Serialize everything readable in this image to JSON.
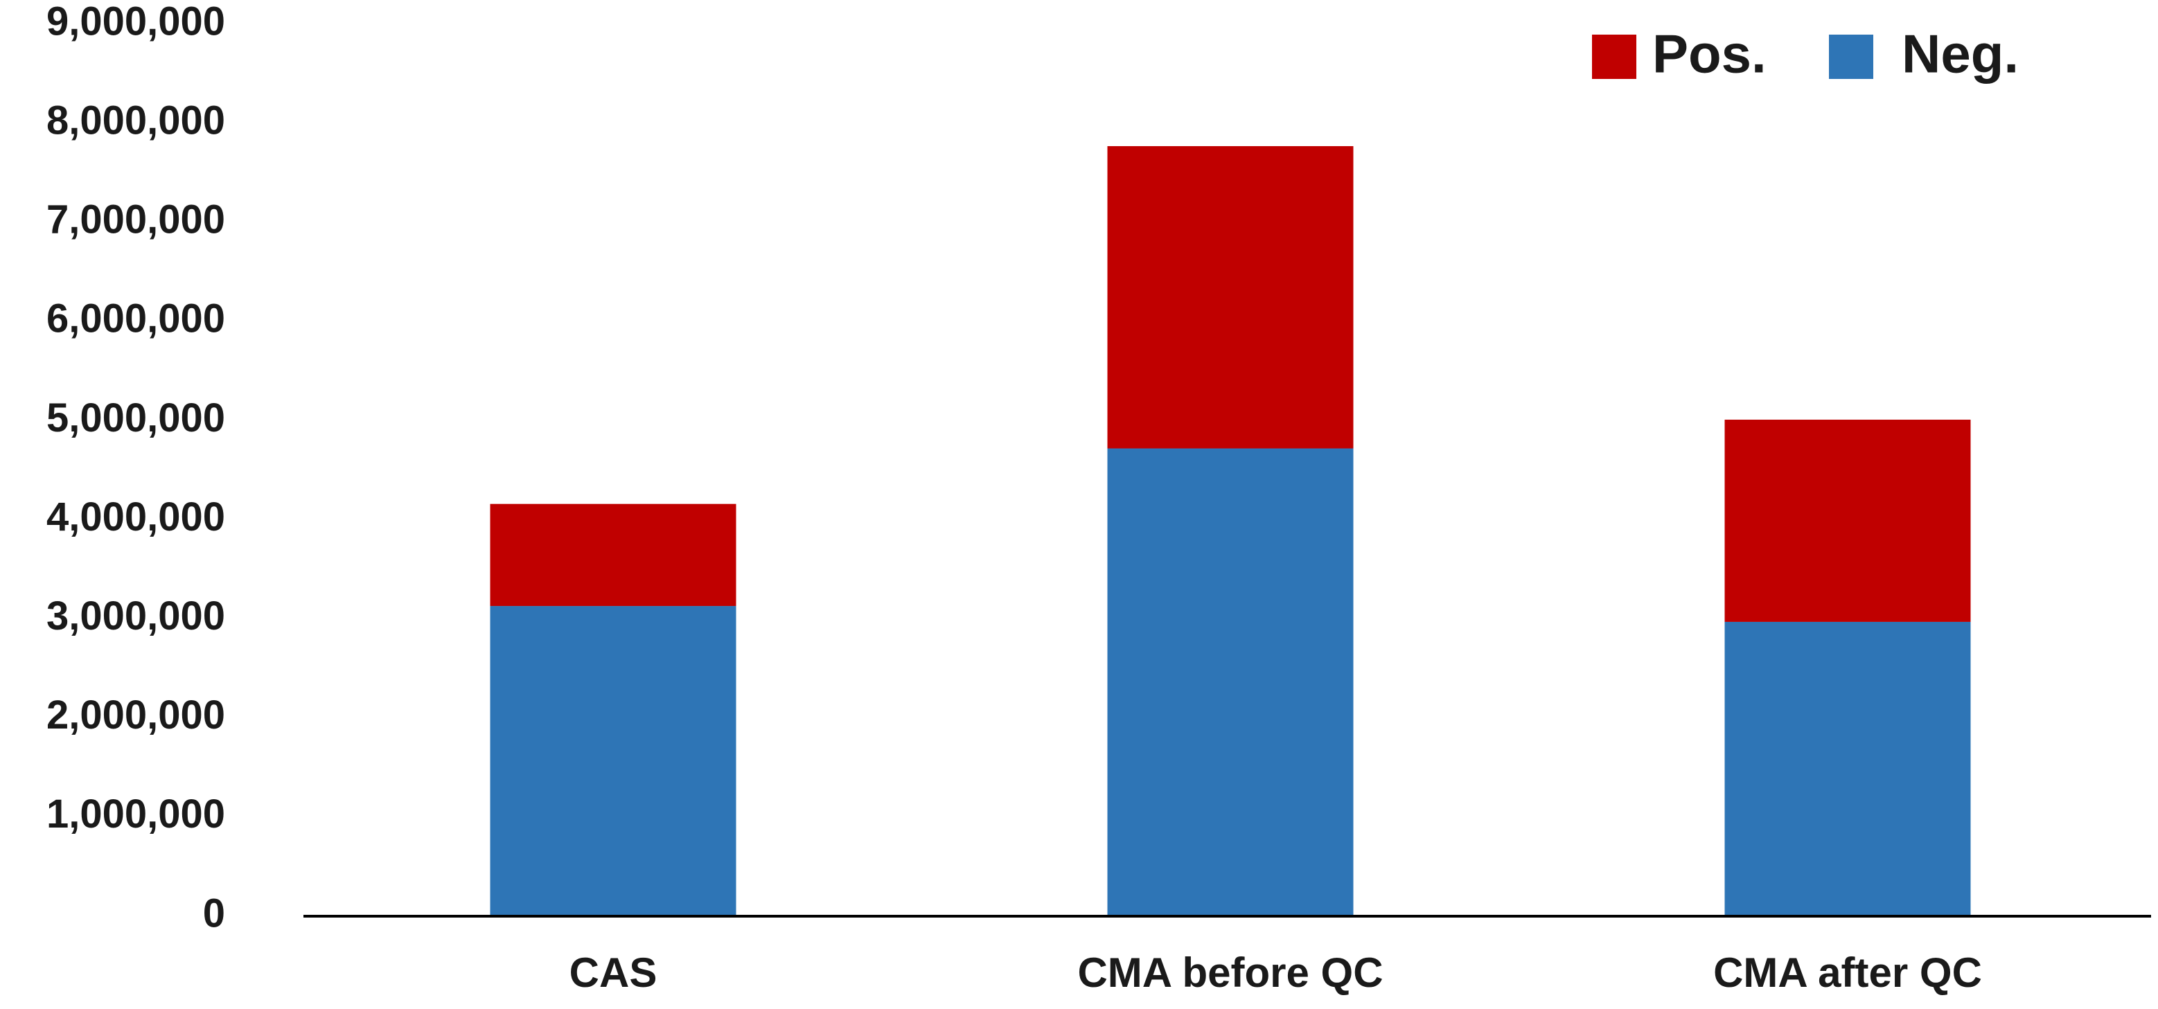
{
  "chart_data": {
    "type": "bar",
    "stacked": true,
    "categories": [
      "CAS",
      "CMA before QC",
      "CMA after QC"
    ],
    "series": [
      {
        "name": "Neg.",
        "color": "#2e75b6",
        "values": [
          3130000,
          4720000,
          2970000
        ]
      },
      {
        "name": "Pos.",
        "color": "#c00000",
        "values": [
          1030000,
          3050000,
          2040000
        ]
      }
    ],
    "yticks": [
      "0",
      "1,000,000",
      "2,000,000",
      "3,000,000",
      "4,000,000",
      "5,000,000",
      "6,000,000",
      "7,000,000",
      "8,000,000",
      "9,000,000"
    ],
    "ylim": [
      0,
      9000000
    ],
    "title": "",
    "xlabel": "",
    "ylabel": "",
    "grid": false,
    "legend": {
      "position": "top-right",
      "items": [
        {
          "label": "Pos.",
          "color": "#c00000"
        },
        {
          "label": "Neg.",
          "color": "#2e75b6"
        }
      ]
    }
  }
}
